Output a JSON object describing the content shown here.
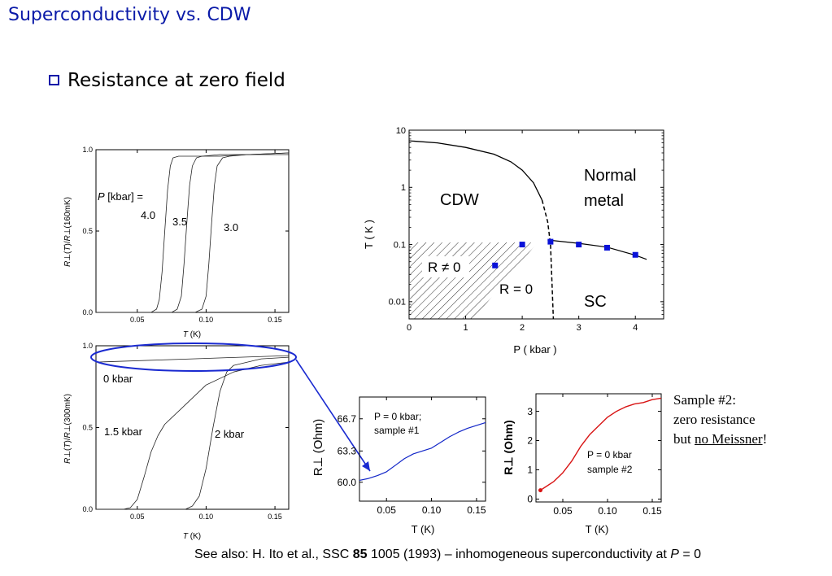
{
  "slide": {
    "title": "Superconductivity vs. CDW",
    "bullet": "Resistance at zero field",
    "sample2_note": [
      "Sample #2:",
      "zero resistance",
      "but no Meissner!"
    ],
    "footer": {
      "pre": "See also: H. Ito et al., SSC ",
      "bold": "85",
      "post": " 1005 (1993) – inhomogeneous superconductivity at ",
      "italic": "P",
      "end": " = 0"
    }
  },
  "colors": {
    "title_blue": "#0a1aa8",
    "marker_blue": "#0a12d8",
    "curve_blue": "#1226c8",
    "curve_red": "#d81414",
    "ellipse_blue": "#1a2ad0"
  },
  "chart_data": [
    {
      "id": "top-left",
      "type": "line",
      "xlabel": "T (K)",
      "ylabel": "R⊥(T)/R⊥(160mK)",
      "xlim": [
        0.02,
        0.16
      ],
      "ylim": [
        0.0,
        1.0
      ],
      "xticks": [
        0.05,
        0.1,
        0.15
      ],
      "xtick_labels": [
        "0.05",
        "0.10",
        "0.15"
      ],
      "yticks": [
        0.0,
        0.5,
        1.0
      ],
      "ytick_labels": [
        "0.0",
        "0.5",
        "1.0"
      ],
      "legend_title": "P [kbar] =",
      "series": [
        {
          "name": "4.0",
          "x": [
            0.02,
            0.06,
            0.064,
            0.066,
            0.068,
            0.07,
            0.072,
            0.074,
            0.076,
            0.08,
            0.09,
            0.11,
            0.13,
            0.16
          ],
          "y": [
            0.0,
            0.0,
            0.02,
            0.08,
            0.25,
            0.5,
            0.75,
            0.9,
            0.95,
            0.96,
            0.96,
            0.96,
            0.97,
            0.97
          ]
        },
        {
          "name": "3.5",
          "x": [
            0.02,
            0.075,
            0.079,
            0.082,
            0.084,
            0.086,
            0.088,
            0.09,
            0.093,
            0.097,
            0.11,
            0.13,
            0.16
          ],
          "y": [
            0.0,
            0.0,
            0.02,
            0.1,
            0.3,
            0.55,
            0.78,
            0.9,
            0.95,
            0.96,
            0.97,
            0.97,
            0.98
          ]
        },
        {
          "name": "3.0",
          "x": [
            0.02,
            0.092,
            0.097,
            0.1,
            0.102,
            0.104,
            0.106,
            0.108,
            0.112,
            0.117,
            0.13,
            0.16
          ],
          "y": [
            0.0,
            0.0,
            0.02,
            0.1,
            0.3,
            0.55,
            0.78,
            0.9,
            0.95,
            0.96,
            0.97,
            0.98
          ]
        }
      ]
    },
    {
      "id": "bottom-left",
      "type": "line",
      "xlabel": "T (K)",
      "ylabel": "R⊥(T)/R⊥(300mK)",
      "xlim": [
        0.02,
        0.16
      ],
      "ylim": [
        0.0,
        1.0
      ],
      "xticks": [
        0.05,
        0.1,
        0.15
      ],
      "xtick_labels": [
        "0.05",
        "0.10",
        "0.15"
      ],
      "yticks": [
        0.0,
        0.5,
        1.0
      ],
      "ytick_labels": [
        "0.0",
        "0.5",
        "1.0"
      ],
      "series": [
        {
          "name": "0 kbar",
          "x": [
            0.02,
            0.16
          ],
          "y": [
            0.9,
            0.94
          ]
        },
        {
          "name": "1.5 kbar",
          "x": [
            0.02,
            0.04,
            0.045,
            0.05,
            0.055,
            0.06,
            0.065,
            0.07,
            0.075,
            0.08,
            0.09,
            0.1,
            0.12,
            0.14,
            0.16
          ],
          "y": [
            0.0,
            0.0,
            0.01,
            0.06,
            0.2,
            0.35,
            0.45,
            0.52,
            0.56,
            0.6,
            0.68,
            0.76,
            0.84,
            0.88,
            0.9
          ]
        },
        {
          "name": "2 kbar",
          "x": [
            0.02,
            0.085,
            0.09,
            0.095,
            0.1,
            0.105,
            0.11,
            0.115,
            0.12,
            0.13,
            0.14,
            0.16
          ],
          "y": [
            0.0,
            0.0,
            0.02,
            0.08,
            0.25,
            0.5,
            0.72,
            0.84,
            0.88,
            0.9,
            0.92,
            0.93
          ]
        }
      ]
    },
    {
      "id": "phase-diagram",
      "type": "scatter",
      "xlabel": "P ( kbar )",
      "ylabel": "T ( K )",
      "xlim": [
        0,
        4.5
      ],
      "ylim": [
        0.005,
        10
      ],
      "yscale": "log",
      "xticks": [
        0,
        1,
        2,
        3,
        4
      ],
      "xtick_labels": [
        "0",
        "1",
        "2",
        "3",
        "4"
      ],
      "yticks": [
        0.01,
        0.1,
        1,
        10
      ],
      "ytick_labels": [
        "0.01",
        "0.1",
        "1",
        "10"
      ],
      "labels": {
        "cdw": "CDW",
        "normal": [
          "Normal",
          "metal"
        ],
        "sc": "SC",
        "r_nonzero": "R ≠ 0",
        "r_zero": "R = 0"
      },
      "cdw_boundary": {
        "x": [
          0,
          0.5,
          1.0,
          1.5,
          1.8,
          2.0,
          2.2,
          2.35,
          2.45,
          2.5,
          2.55
        ],
        "y": [
          6.5,
          6.0,
          5.0,
          3.8,
          2.8,
          2.0,
          1.2,
          0.6,
          0.25,
          0.1,
          0.005
        ]
      },
      "sc_boundary": {
        "x": [
          2.45,
          3.0,
          3.5,
          4.0,
          4.2
        ],
        "y": [
          0.12,
          0.105,
          0.09,
          0.065,
          0.055
        ]
      },
      "points": {
        "x": [
          1.52,
          2.0,
          2.5,
          3.0,
          3.5,
          4.0
        ],
        "y": [
          0.043,
          0.1,
          0.112,
          0.1,
          0.088,
          0.066
        ]
      }
    },
    {
      "id": "sample1",
      "type": "line",
      "xlabel": "T (K)",
      "ylabel": "R⊥ (Ohm)",
      "xlim": [
        0.02,
        0.16
      ],
      "ylim": [
        58.0,
        69.0
      ],
      "xticks": [
        0.05,
        0.1,
        0.15
      ],
      "xtick_labels": [
        "0.05",
        "0.10",
        "0.15"
      ],
      "yticks": [
        60.0,
        63.3,
        66.7
      ],
      "ytick_labels": [
        "60.0",
        "63.3",
        "66.7"
      ],
      "annotation": [
        "P = 0 kbar;",
        "sample #1"
      ],
      "series": [
        {
          "name": "",
          "x": [
            0.02,
            0.03,
            0.04,
            0.05,
            0.06,
            0.07,
            0.08,
            0.09,
            0.1,
            0.11,
            0.12,
            0.13,
            0.14,
            0.15,
            0.16
          ],
          "y": [
            60.2,
            60.4,
            60.7,
            61.1,
            61.8,
            62.5,
            63.0,
            63.3,
            63.6,
            64.2,
            64.8,
            65.3,
            65.7,
            66.0,
            66.3
          ]
        }
      ]
    },
    {
      "id": "sample2",
      "type": "line",
      "xlabel": "T (K)",
      "ylabel": "R⊥ (Ohm)",
      "xlim": [
        0.02,
        0.16
      ],
      "ylim": [
        -0.1,
        3.6
      ],
      "xticks": [
        0.05,
        0.1,
        0.15
      ],
      "xtick_labels": [
        "0.05",
        "0.10",
        "0.15"
      ],
      "yticks": [
        0,
        1,
        2,
        3
      ],
      "ytick_labels": [
        "0",
        "1",
        "2",
        "3"
      ],
      "annotation": [
        "P = 0 kbar",
        "sample #2"
      ],
      "series": [
        {
          "name": "",
          "x": [
            0.025,
            0.03,
            0.04,
            0.05,
            0.06,
            0.07,
            0.08,
            0.09,
            0.1,
            0.11,
            0.12,
            0.13,
            0.14,
            0.15,
            0.16
          ],
          "y": [
            0.3,
            0.4,
            0.6,
            0.9,
            1.3,
            1.8,
            2.2,
            2.5,
            2.8,
            3.0,
            3.15,
            3.25,
            3.3,
            3.4,
            3.45
          ]
        }
      ]
    }
  ]
}
